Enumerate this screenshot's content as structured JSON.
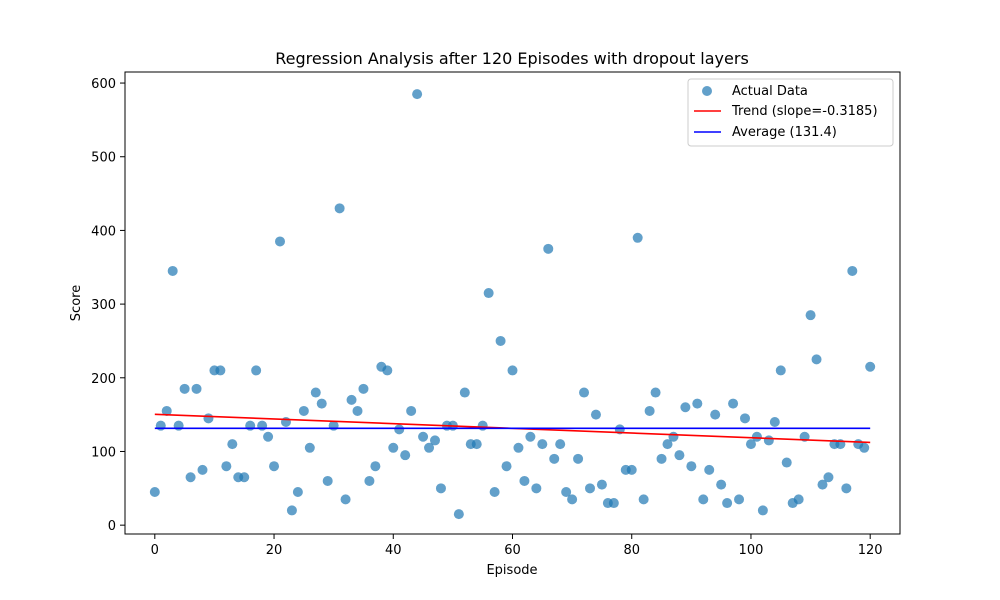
{
  "chart_data": {
    "type": "scatter",
    "title": "Regression Analysis after 120 Episodes with dropout layers",
    "xlabel": "Episode",
    "ylabel": "Score",
    "xlim": [
      -5,
      125
    ],
    "ylim": [
      -12,
      615
    ],
    "xticks": [
      0,
      20,
      40,
      60,
      80,
      100,
      120
    ],
    "yticks": [
      0,
      100,
      200,
      300,
      400,
      500,
      600
    ],
    "grid": false,
    "legend": {
      "position": "top-right",
      "entries": [
        "Actual Data",
        "Trend (slope=-0.3185)",
        "Average (131.4)"
      ]
    },
    "colors": {
      "points": "#1f77b4",
      "trend": "#ff0000",
      "average": "#0000ff"
    },
    "series": [
      {
        "name": "Actual Data",
        "kind": "scatter",
        "x": [
          0,
          1,
          2,
          3,
          4,
          5,
          6,
          7,
          8,
          9,
          10,
          11,
          12,
          13,
          14,
          15,
          16,
          17,
          18,
          19,
          20,
          21,
          22,
          23,
          24,
          25,
          26,
          27,
          28,
          29,
          30,
          31,
          32,
          33,
          34,
          35,
          36,
          37,
          38,
          39,
          40,
          41,
          42,
          43,
          44,
          45,
          46,
          47,
          48,
          49,
          50,
          51,
          52,
          53,
          54,
          55,
          56,
          57,
          58,
          59,
          60,
          61,
          62,
          63,
          64,
          65,
          66,
          67,
          68,
          69,
          70,
          71,
          72,
          73,
          74,
          75,
          76,
          77,
          78,
          79,
          80,
          81,
          82,
          83,
          84,
          85,
          86,
          87,
          88,
          89,
          90,
          91,
          92,
          93,
          94,
          95,
          96,
          97,
          98,
          99,
          100,
          101,
          102,
          103,
          104,
          105,
          106,
          107,
          108,
          109,
          110,
          111,
          112,
          113,
          114,
          115,
          116,
          117,
          118,
          119,
          120
        ],
        "y": [
          45,
          135,
          155,
          345,
          135,
          185,
          65,
          185,
          75,
          145,
          210,
          210,
          80,
          110,
          65,
          65,
          135,
          210,
          135,
          120,
          80,
          385,
          140,
          20,
          45,
          155,
          105,
          180,
          165,
          60,
          135,
          430,
          35,
          170,
          155,
          185,
          60,
          80,
          215,
          210,
          105,
          130,
          95,
          155,
          585,
          120,
          105,
          115,
          50,
          135,
          135,
          15,
          180,
          110,
          110,
          135,
          315,
          45,
          250,
          80,
          210,
          105,
          60,
          120,
          50,
          110,
          375,
          90,
          110,
          45,
          35,
          90,
          180,
          50,
          150,
          55,
          30,
          30,
          130,
          75,
          75,
          390,
          35,
          155,
          180,
          90,
          110,
          120,
          95,
          160,
          80,
          165,
          35,
          75,
          150,
          55,
          30,
          165,
          35,
          145,
          110,
          120,
          20,
          115,
          140,
          210,
          85,
          30,
          35,
          120,
          285,
          225,
          55,
          65,
          110,
          110,
          50,
          345,
          110,
          105,
          215
        ]
      },
      {
        "name": "Trend (slope=-0.3185)",
        "kind": "line",
        "x": [
          0,
          120
        ],
        "y": [
          150.5,
          112.3
        ]
      },
      {
        "name": "Average (131.4)",
        "kind": "line",
        "x": [
          0,
          120
        ],
        "y": [
          131.4,
          131.4
        ]
      }
    ]
  }
}
